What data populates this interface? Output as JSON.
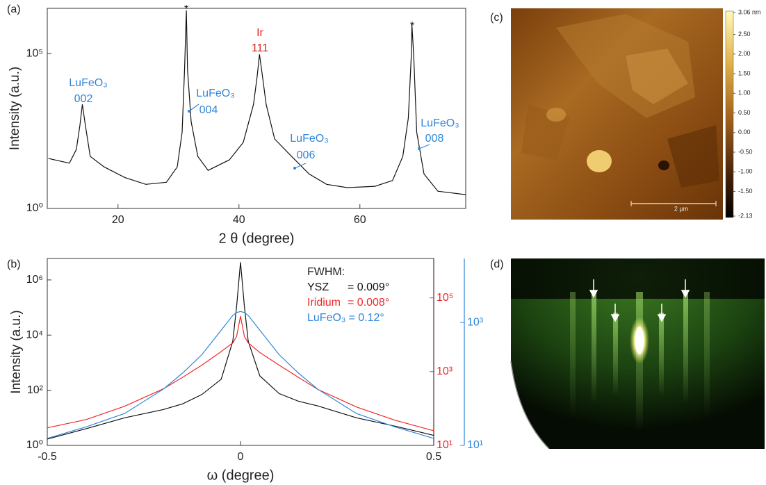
{
  "chart_data": [
    {
      "type": "line",
      "panel": "(a)",
      "x_label": "2 θ (degree)",
      "y_label": "Intensity (a.u.)",
      "log_y": true,
      "color": "#111111",
      "xlim": [
        8.3,
        77.5
      ],
      "xticks": [
        20,
        40,
        60
      ],
      "ylim": [
        1,
        2900000
      ],
      "yticks": [
        {
          "value": 1,
          "label": "10⁰"
        },
        {
          "value": 100000,
          "label": "10⁵"
        }
      ],
      "x": [
        8.5,
        11.95,
        13.1,
        13.7,
        14.1,
        14.6,
        15.4,
        17.7,
        21.1,
        24.6,
        28.0,
        29.8,
        30.6,
        31.0,
        31.3,
        31.5,
        32.1,
        33.2,
        34.9,
        38.4,
        40.7,
        42.4,
        43.0,
        43.4,
        43.9,
        44.5,
        45.9,
        48.7,
        51.6,
        54.5,
        57.9,
        62.5,
        65.4,
        67.1,
        68.0,
        68.5,
        68.6,
        68.9,
        69.4,
        70.6,
        72.9,
        77.5
      ],
      "values": [
        41,
        29,
        80,
        490,
        2300,
        490,
        48,
        22,
        10,
        6,
        7,
        22,
        290,
        30000,
        2500000,
        30000,
        630,
        48,
        17,
        37,
        135,
        2300,
        18000,
        95000,
        18000,
        2300,
        175,
        48,
        13,
        6,
        4.7,
        5.2,
        8,
        48,
        820,
        85000,
        870000,
        85000,
        290,
        13,
        3.6,
        2.8
      ],
      "annotations": [
        {
          "lines": [
            "LuFeO₃",
            "002"
          ],
          "color": "#2f86d8"
        },
        {
          "lines": [
            "LuFeO₃",
            "004"
          ],
          "color": "#2f86d8"
        },
        {
          "lines": [
            "Ir",
            "111"
          ],
          "color": "#e02020"
        },
        {
          "lines": [
            "LuFeO₃",
            "006"
          ],
          "color": "#2f86d8"
        },
        {
          "lines": [
            "LuFeO₃",
            "008"
          ],
          "color": "#2f86d8"
        },
        {
          "lines": [
            "*"
          ],
          "color": "#111111"
        },
        {
          "lines": [
            "*"
          ],
          "color": "#111111"
        }
      ]
    },
    {
      "type": "line",
      "panel": "(b)",
      "x_label": "ω (degree)",
      "y_label": "Intensity (a.u.)",
      "log_y": true,
      "legend_title": "FWHM:",
      "xlim": [
        -0.5,
        0.5
      ],
      "xticks": [
        -0.5,
        0,
        0.5
      ],
      "ylim": [
        1,
        6000000
      ],
      "yticks": [
        {
          "value": 1,
          "label": "10⁰"
        },
        {
          "value": 100,
          "label": "10²"
        },
        {
          "value": 10000,
          "label": "10⁴"
        },
        {
          "value": 1000000,
          "label": "10⁶"
        }
      ],
      "y2lim": [
        10,
        1170000
      ],
      "y2ticks": [
        {
          "value": 10,
          "label": "10¹"
        },
        {
          "value": 1000,
          "label": "10³"
        },
        {
          "value": 100000,
          "label": "10⁵"
        }
      ],
      "y2color": "#f0282a",
      "y3lim": [
        10,
        11000
      ],
      "y3ticks": [
        {
          "value": 10,
          "label": "10¹"
        },
        {
          "value": 1000,
          "label": "10³"
        }
      ],
      "y3color": "#2f86d8",
      "x": [
        -0.5,
        -0.4,
        -0.3,
        -0.2,
        -0.15,
        -0.1,
        -0.05,
        -0.02,
        -0.01,
        0,
        0.01,
        0.02,
        0.05,
        0.1,
        0.15,
        0.2,
        0.3,
        0.4,
        0.5
      ],
      "series": [
        {
          "name": "YSZ",
          "fwhm": "= 0.009°",
          "color": "#111111",
          "axis": "y",
          "values": [
            1.7,
            4,
            10,
            20,
            32,
            70,
            250,
            6000,
            110000,
            4400000,
            110000,
            6000,
            330,
            76,
            40,
            27,
            10,
            5,
            2.3
          ]
        },
        {
          "name": "Iridium",
          "fwhm": "= 0.008°",
          "color": "#f0282a",
          "axis": "y2",
          "values": [
            30,
            50,
            115,
            340,
            700,
            1500,
            3500,
            6000,
            9000,
            32000,
            9000,
            6000,
            3300,
            1500,
            700,
            330,
            110,
            48,
            25
          ]
        },
        {
          "name": "LuFeO₃",
          "fwhm": "= 0.12°",
          "color": "#2f86d8",
          "axis": "y3",
          "values": [
            13,
            20,
            33,
            82,
            150,
            300,
            750,
            1300,
            1450,
            1510,
            1450,
            1300,
            750,
            300,
            150,
            82,
            33,
            20,
            13
          ]
        }
      ]
    }
  ],
  "panels": [
    {
      "label": "(c)",
      "scale_bar": "2 µm",
      "colorbar": {
        "lim": [
          -2.13,
          3.06
        ],
        "ticks": [
          {
            "value": 3.06,
            "label": "3.06 nm"
          },
          {
            "value": 2.5,
            "label": "2.50"
          },
          {
            "value": 2,
            "label": "2.00"
          },
          {
            "value": 1.5,
            "label": "1.50"
          },
          {
            "value": 1,
            "label": "1.00"
          },
          {
            "value": 0.5,
            "label": "0.50"
          },
          {
            "value": 0,
            "label": "0.00"
          },
          {
            "value": -0.5,
            "label": "-0.50"
          },
          {
            "value": -1,
            "label": "-1.00"
          },
          {
            "value": -1.5,
            "label": "-1.50"
          },
          -2.13
        ]
      }
    },
    {
      "label": "(d)"
    }
  ]
}
